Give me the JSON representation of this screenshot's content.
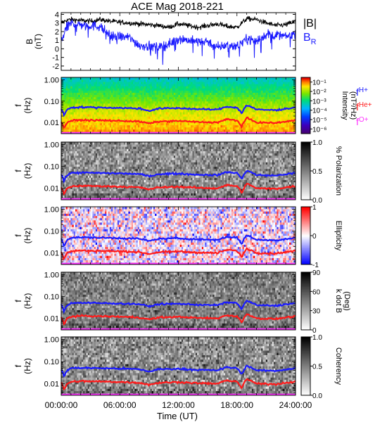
{
  "chart_data": {
    "type": "spectrogram",
    "title": "ACE Mag 2018-221",
    "xlabel": "Time (UT)",
    "x_ticks": [
      "00:00:00",
      "06:00:00",
      "12:00:00",
      "18:00:00",
      "24:00:00"
    ],
    "x_range_hours": [
      0,
      24
    ],
    "top_panel": {
      "ylabel": "B (nT)",
      "ylim": [
        -2.5,
        4.2
      ],
      "y_ticks": [
        "4",
        "3",
        "2",
        "1",
        "0",
        "-1",
        "-2"
      ],
      "series": [
        {
          "name": "|B|",
          "color": "#000000",
          "hours": [
            0,
            0.5,
            1,
            2,
            3,
            4,
            5,
            6,
            7,
            8,
            9,
            10,
            11,
            12,
            13,
            14,
            15,
            16,
            17,
            18,
            19,
            20,
            21,
            22,
            23,
            24
          ],
          "values": [
            3.0,
            3.3,
            3.4,
            3.3,
            3.2,
            3.4,
            3.2,
            3.1,
            3.0,
            2.9,
            2.8,
            2.7,
            2.5,
            2.9,
            2.7,
            2.5,
            2.7,
            2.9,
            2.6,
            2.5,
            3.5,
            3.4,
            3.0,
            2.7,
            2.8,
            3.2
          ]
        },
        {
          "name": "B_R",
          "label": "B",
          "label_sub": "R",
          "color": "#1a1aff",
          "hours": [
            0,
            0.5,
            1,
            1.5,
            2,
            3,
            4,
            5,
            6,
            7,
            8,
            9,
            10,
            11,
            12,
            13,
            14,
            15,
            16,
            17,
            18,
            19,
            20,
            21,
            22,
            23,
            24
          ],
          "values": [
            1.0,
            2.3,
            3.0,
            2.9,
            2.8,
            2.7,
            2.6,
            1.5,
            1.4,
            1.3,
            0.4,
            0.3,
            0.2,
            0.5,
            1.2,
            1.0,
            0.8,
            0.9,
            0.1,
            0.5,
            0.3,
            1.2,
            0.9,
            1.7,
            1.6,
            1.4,
            1.9
          ]
        }
      ]
    },
    "freq_axis": {
      "ylabel": "f (Hz)",
      "scale": "log",
      "ylim": [
        0.003,
        1.3
      ],
      "y_ticks": [
        "1.00",
        "0.10",
        "0.01"
      ]
    },
    "gyro_lines": [
      {
        "name": "fH+",
        "label": "f",
        "label_sub": "H+",
        "color": "#1a1aff",
        "hours": [
          0,
          0.3,
          0.6,
          1,
          2,
          4,
          6,
          8,
          9,
          10,
          12,
          14,
          16,
          17,
          18,
          18.5,
          19,
          20,
          22,
          24
        ],
        "values_hz": [
          0.045,
          0.02,
          0.04,
          0.05,
          0.052,
          0.05,
          0.048,
          0.045,
          0.035,
          0.045,
          0.047,
          0.042,
          0.04,
          0.055,
          0.05,
          0.025,
          0.065,
          0.04,
          0.038,
          0.05
        ]
      },
      {
        "name": "fHe+",
        "label": "f",
        "label_sub": "He+",
        "color": "#ff1a1a",
        "hours": [
          0,
          0.3,
          0.6,
          1,
          2,
          4,
          6,
          8,
          9,
          10,
          12,
          14,
          16,
          17,
          18,
          18.5,
          19,
          20,
          22,
          24
        ],
        "values_hz": [
          0.011,
          0.005,
          0.01,
          0.012,
          0.013,
          0.0125,
          0.012,
          0.011,
          0.009,
          0.011,
          0.0118,
          0.0105,
          0.01,
          0.014,
          0.0125,
          0.006,
          0.016,
          0.01,
          0.0095,
          0.0125
        ]
      },
      {
        "name": "fO+",
        "label": "f",
        "label_sub": "O+",
        "color": "#ff33ff",
        "hours": [
          0,
          24
        ],
        "values_hz": [
          0.003,
          0.003
        ]
      }
    ],
    "spectral_panels": [
      {
        "id": "intensity",
        "colorbar_label": "Intensity (nT²/Hz)",
        "colormap": "rainbow",
        "cb_ticks": [
          "10⁻¹",
          "10⁻²",
          "10⁻³",
          "10⁻⁴",
          "10⁻⁵",
          "10⁻⁶"
        ],
        "cb_range_log10": [
          -6.5,
          -0.5
        ]
      },
      {
        "id": "polarization",
        "colorbar_label": "% Polarization",
        "colormap": "gray",
        "cb_ticks": [
          "1.0",
          "0.5",
          "0.0"
        ],
        "cb_range": [
          0,
          1
        ]
      },
      {
        "id": "ellipticity",
        "colorbar_label": "Ellipticity",
        "colormap": "blue-white-red",
        "cb_ticks": [
          "1",
          "0",
          "-1"
        ],
        "cb_range": [
          -1,
          1
        ]
      },
      {
        "id": "kdotb",
        "colorbar_label": "k dot B (Deg)",
        "colormap": "gray",
        "cb_ticks": [
          "90",
          "60",
          "30",
          "0"
        ],
        "cb_range": [
          0,
          90
        ]
      },
      {
        "id": "coherency",
        "colorbar_label": "Coherency",
        "colormap": "gray",
        "cb_ticks": [
          "1.0",
          "0.5",
          "0.0"
        ],
        "cb_range": [
          0,
          1
        ]
      }
    ]
  }
}
